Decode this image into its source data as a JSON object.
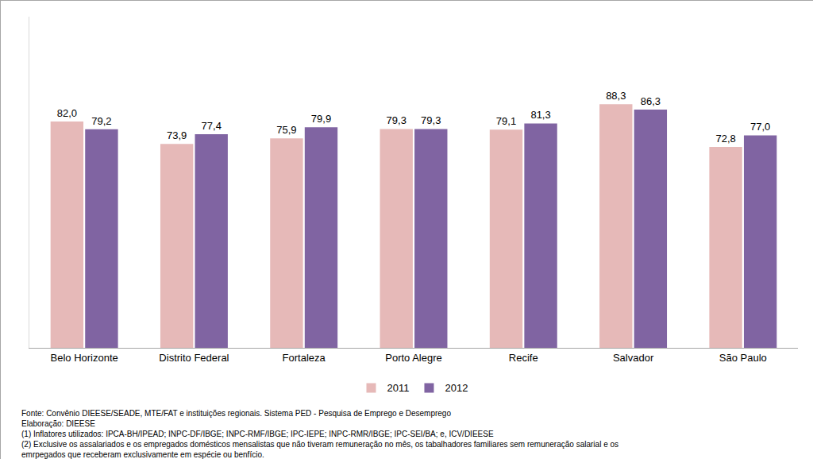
{
  "chart_data": {
    "type": "bar",
    "categories": [
      "Belo Horizonte",
      "Distrito Federal",
      "Fortaleza",
      "Porto Alegre",
      "Recife",
      "Salvador",
      "São Paulo"
    ],
    "series": [
      {
        "name": "2011",
        "color": "#e6b9b8",
        "values": [
          82.0,
          73.9,
          75.9,
          79.3,
          79.1,
          88.3,
          72.8
        ],
        "value_labels": [
          "82,0",
          "73,9",
          "75,9",
          "79,3",
          "79,1",
          "88,3",
          "72,8"
        ]
      },
      {
        "name": "2012",
        "color": "#8064a2",
        "values": [
          79.2,
          77.4,
          79.9,
          79.3,
          81.3,
          86.3,
          77.0
        ],
        "value_labels": [
          "79,2",
          "77,4",
          "79,9",
          "79,3",
          "81,3",
          "86,3",
          "77,0"
        ]
      }
    ],
    "ylim": [
      0,
      120
    ],
    "yticks": [],
    "tick_labels": "x",
    "grid": false,
    "data_labels": true,
    "legend": "bottom",
    "notes": [
      "Fonte: Convênio DIEESE/SEADE, MTE/FAT e instituições regionais. Sistema PED - Pesquisa de Emprego e Desemprego",
      "Elaboração: DIEESE",
      "(1) Inflatores utilizados: IPCA-BH/IPEAD; INPC-DF/IBGE; INPC-RMF/IBGE; IPC-IEPE; INPC-RMR/IBGE; IPC-SEI/BA; e, ICV/DIEESE",
      "(2) Exclusive os assalariados e os empregados domésticos mensalistas que não tiveram remuneração no mês, os tabalhadores familiares sem remuneração salarial e os",
      "emrpegados que receberam exclusivamente em espécie ou benfício."
    ]
  }
}
